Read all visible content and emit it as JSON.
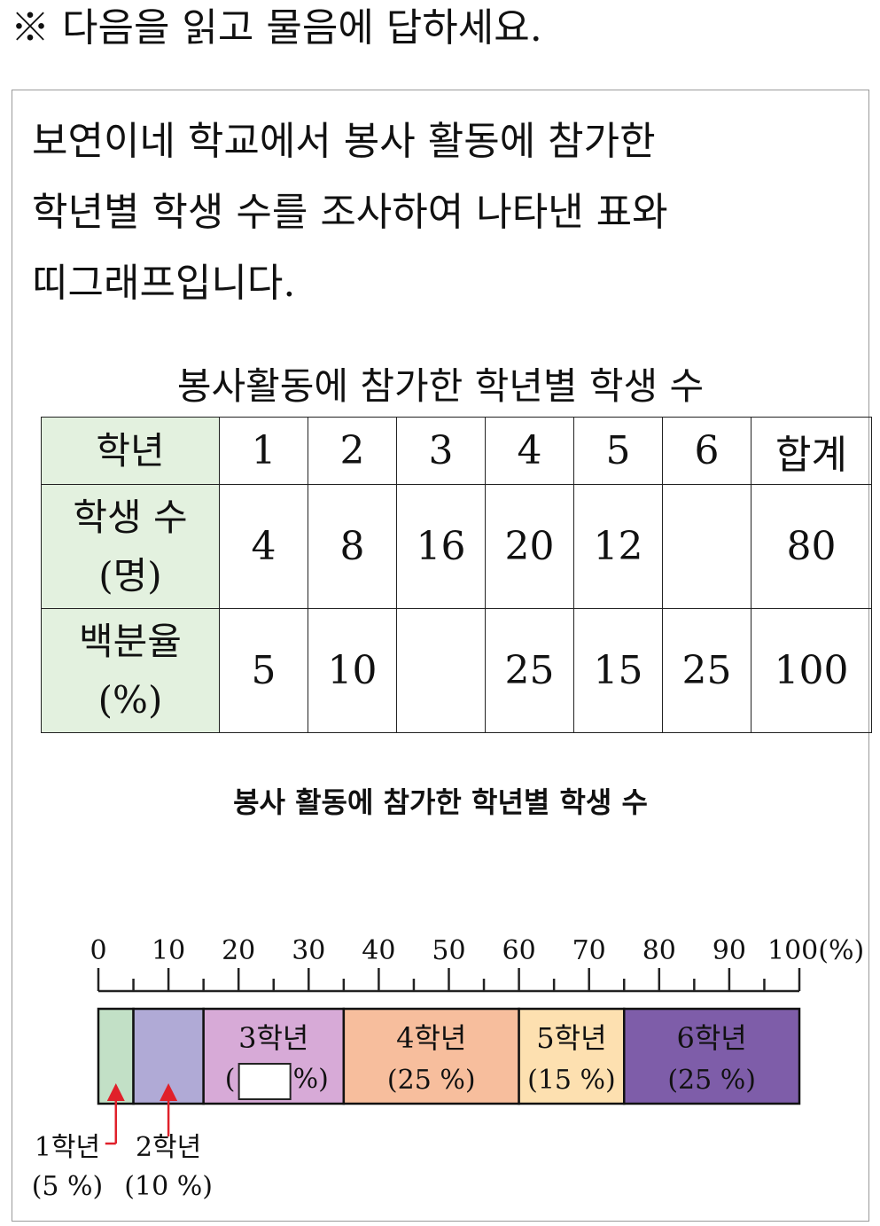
{
  "instruction": "※ 다음을 읽고 물음에 답하세요.",
  "passage": {
    "line1": "보연이네 학교에서 봉사 활동에 참가한",
    "line2": "학년별 학생 수를 조사하여 나타낸 표와",
    "line3": "띠그래프입니다."
  },
  "table": {
    "title": "봉사활동에 참가한 학년별 학생 수",
    "header_label": "학년",
    "grades": [
      "1",
      "2",
      "3",
      "4",
      "5",
      "6",
      "합계"
    ],
    "students_label_line1": "학생 수",
    "students_label_line2": "(명)",
    "students": [
      "4",
      "8",
      "16",
      "20",
      "12",
      "",
      "80"
    ],
    "percent_label_line1": "백분율",
    "percent_label_line2": "(%)",
    "percents": [
      "5",
      "10",
      "",
      "25",
      "15",
      "25",
      "100"
    ]
  },
  "chart_data": {
    "type": "bar",
    "title": "봉사 활동에 참가한 학년별 학생 수",
    "axis": {
      "ticks": [
        "0",
        "10",
        "20",
        "30",
        "40",
        "50",
        "60",
        "70",
        "80",
        "90",
        "100(%)"
      ],
      "range": [
        0,
        100
      ],
      "minor_step": 5
    },
    "series": [
      {
        "label": "1학년",
        "sub": "(5 %)",
        "value": 5,
        "color": "#c2e0c6",
        "label_outside": true
      },
      {
        "label": "2학년",
        "sub": "(10 %)",
        "value": 10,
        "color": "#b0aad6",
        "label_outside": true
      },
      {
        "label": "3학년",
        "sub_prefix": "(",
        "sub_suffix": "%)",
        "value": 20,
        "color": "#d7aad7",
        "blank": true
      },
      {
        "label": "4학년",
        "sub": "(25 %)",
        "value": 25,
        "color": "#f7be9d"
      },
      {
        "label": "5학년",
        "sub": "(15 %)",
        "value": 15,
        "color": "#fde0b0"
      },
      {
        "label": "6학년",
        "sub": "(25 %)",
        "value": 25,
        "color": "#7e5da9"
      }
    ],
    "arrow_color": "#e0202a"
  }
}
